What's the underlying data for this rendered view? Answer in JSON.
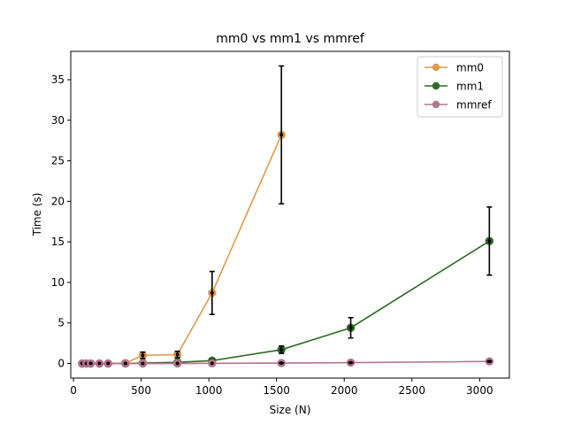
{
  "chart_data": {
    "type": "line",
    "title": "mm0 vs mm1 vs mmref",
    "xlabel": "Size (N)",
    "ylabel": "Time (s)",
    "xlim": [
      -20,
      3220
    ],
    "ylim": [
      -1.8,
      38.5
    ],
    "xticks": [
      0,
      500,
      1000,
      1500,
      2000,
      2500,
      3000
    ],
    "yticks": [
      0,
      5,
      10,
      15,
      20,
      25,
      30,
      35
    ],
    "grid": false,
    "legend_position": "top-right",
    "series": [
      {
        "name": "mm0",
        "color": "#e0994a",
        "points": [
          {
            "x": 64,
            "y": 0.0,
            "err": 0.0
          },
          {
            "x": 96,
            "y": 0.0,
            "err": 0.0
          },
          {
            "x": 128,
            "y": 0.0,
            "err": 0.0
          },
          {
            "x": 192,
            "y": 0.0,
            "err": 0.0
          },
          {
            "x": 256,
            "y": 0.0,
            "err": 0.0
          },
          {
            "x": 384,
            "y": 0.05,
            "err": 0.1
          },
          {
            "x": 512,
            "y": 1.0,
            "err": 0.4
          },
          {
            "x": 768,
            "y": 1.1,
            "err": 0.4
          },
          {
            "x": 1024,
            "y": 8.7,
            "err": 2.65
          },
          {
            "x": 1536,
            "y": 28.2,
            "err": 8.5
          }
        ]
      },
      {
        "name": "mm1",
        "color": "#2e6b24",
        "points": [
          {
            "x": 64,
            "y": 0.0,
            "err": 0.0
          },
          {
            "x": 96,
            "y": 0.0,
            "err": 0.0
          },
          {
            "x": 128,
            "y": 0.0,
            "err": 0.0
          },
          {
            "x": 192,
            "y": 0.0,
            "err": 0.0
          },
          {
            "x": 256,
            "y": 0.0,
            "err": 0.0
          },
          {
            "x": 384,
            "y": 0.0,
            "err": 0.05
          },
          {
            "x": 512,
            "y": 0.05,
            "err": 0.1
          },
          {
            "x": 768,
            "y": 0.15,
            "err": 0.15
          },
          {
            "x": 1024,
            "y": 0.35,
            "err": 0.1
          },
          {
            "x": 1536,
            "y": 1.7,
            "err": 0.45
          },
          {
            "x": 2048,
            "y": 4.4,
            "err": 1.25
          },
          {
            "x": 3072,
            "y": 15.1,
            "err": 4.2
          }
        ]
      },
      {
        "name": "mmref",
        "color": "#b5738f",
        "points": [
          {
            "x": 64,
            "y": 0.0,
            "err": 0.0
          },
          {
            "x": 96,
            "y": 0.0,
            "err": 0.0
          },
          {
            "x": 128,
            "y": 0.0,
            "err": 0.0
          },
          {
            "x": 192,
            "y": 0.0,
            "err": 0.0
          },
          {
            "x": 256,
            "y": 0.0,
            "err": 0.0
          },
          {
            "x": 384,
            "y": 0.0,
            "err": 0.0
          },
          {
            "x": 512,
            "y": 0.0,
            "err": 0.0
          },
          {
            "x": 768,
            "y": 0.0,
            "err": 0.0
          },
          {
            "x": 1024,
            "y": 0.02,
            "err": 0.0
          },
          {
            "x": 1536,
            "y": 0.05,
            "err": 0.02
          },
          {
            "x": 2048,
            "y": 0.1,
            "err": 0.02
          },
          {
            "x": 3072,
            "y": 0.25,
            "err": 0.05
          }
        ]
      }
    ]
  }
}
